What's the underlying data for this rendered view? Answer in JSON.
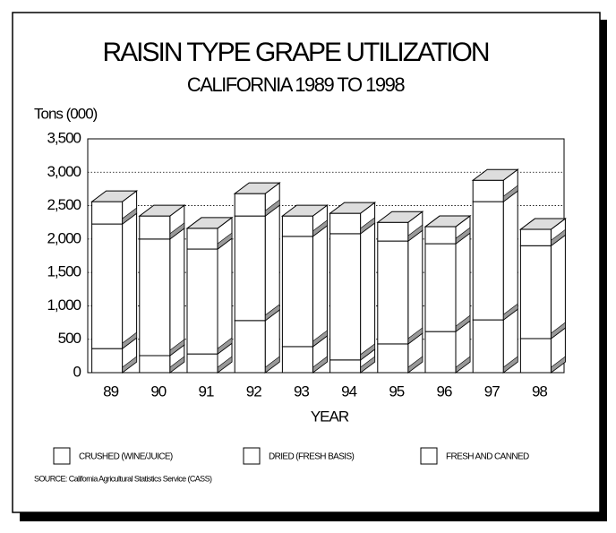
{
  "chart_data": {
    "type": "bar",
    "stacked": true,
    "title": "RAISIN TYPE GRAPE UTILIZATION",
    "subtitle": "CALIFORNIA 1989 TO 1998",
    "y_label": "Tons (000)",
    "x_label": "YEAR",
    "source": "SOURCE:  California Agricultural Statistics Service (CASS)",
    "categories": [
      "89",
      "90",
      "91",
      "92",
      "93",
      "94",
      "95",
      "96",
      "97",
      "98"
    ],
    "series": [
      {
        "name": "CRUSHED (WINE/JUICE)",
        "color": "#ffffff",
        "values": [
          360,
          255,
          280,
          780,
          390,
          190,
          430,
          615,
          790,
          510
        ]
      },
      {
        "name": "DRIED (FRESH BASIS)",
        "color": "#ffffff",
        "values": [
          1865,
          1745,
          1570,
          1565,
          1650,
          1890,
          1540,
          1315,
          1770,
          1390
        ]
      },
      {
        "name": "FRESH AND CANNED",
        "color": "#ffffff",
        "values": [
          335,
          345,
          310,
          335,
          305,
          305,
          280,
          255,
          320,
          245
        ]
      }
    ],
    "ylim": [
      0,
      3500
    ],
    "yticks": [
      0,
      500,
      {
        "value": 1000,
        "label": "1,000"
      },
      {
        "value": 1500,
        "label": "1,500"
      },
      {
        "value": 2000,
        "label": "2,000"
      },
      {
        "value": 2500,
        "label": "2,500"
      },
      {
        "value": 3000,
        "label": "3,000"
      },
      {
        "value": 3500,
        "label": "3,500"
      }
    ],
    "grid": true
  }
}
